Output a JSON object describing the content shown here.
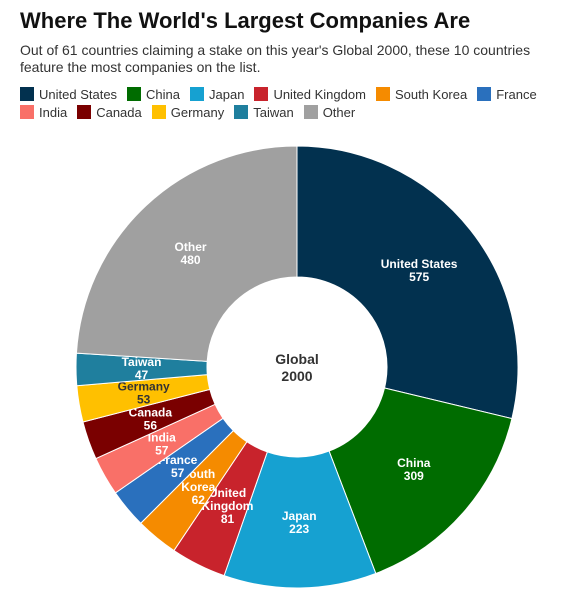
{
  "chart_data": {
    "type": "pie",
    "title": "Where The World's Largest Companies Are",
    "subtitle": "Out of 61 countries claiming a stake on this year's Global 2000, these 10 countries feature the most companies on the list.",
    "center_label": [
      "Global",
      "2000"
    ],
    "legend_position": "top-left",
    "slices": [
      {
        "name": "United States",
        "label_lines": [
          "United States"
        ],
        "value": 575,
        "color": "#02314f",
        "text_color": "#ffffff"
      },
      {
        "name": "China",
        "label_lines": [
          "China"
        ],
        "value": 309,
        "color": "#006c00",
        "text_color": "#ffffff"
      },
      {
        "name": "Japan",
        "label_lines": [
          "Japan"
        ],
        "value": 223,
        "color": "#16a1d1",
        "text_color": "#ffffff"
      },
      {
        "name": "United Kingdom",
        "label_lines": [
          "United",
          "Kingdom"
        ],
        "value": 81,
        "color": "#c8232c",
        "text_color": "#ffffff"
      },
      {
        "name": "South Korea",
        "label_lines": [
          "South",
          "Korea"
        ],
        "value": 62,
        "color": "#f58b00",
        "text_color": "#ffffff"
      },
      {
        "name": "France",
        "label_lines": [
          "France"
        ],
        "value": 57,
        "color": "#2a70bd",
        "text_color": "#ffffff"
      },
      {
        "name": "India",
        "label_lines": [
          "India"
        ],
        "value": 57,
        "color": "#f97068",
        "text_color": "#ffffff"
      },
      {
        "name": "Canada",
        "label_lines": [
          "Canada"
        ],
        "value": 56,
        "color": "#7a0000",
        "text_color": "#ffffff"
      },
      {
        "name": "Germany",
        "label_lines": [
          "Germany"
        ],
        "value": 53,
        "color": "#ffc000",
        "text_color": "#333333"
      },
      {
        "name": "Taiwan",
        "label_lines": [
          "Taiwan"
        ],
        "value": 47,
        "color": "#1f7f9e",
        "text_color": "#ffffff"
      },
      {
        "name": "Other",
        "label_lines": [
          "Other"
        ],
        "value": 480,
        "color": "#a0a0a0",
        "text_color": "#ffffff"
      }
    ]
  }
}
